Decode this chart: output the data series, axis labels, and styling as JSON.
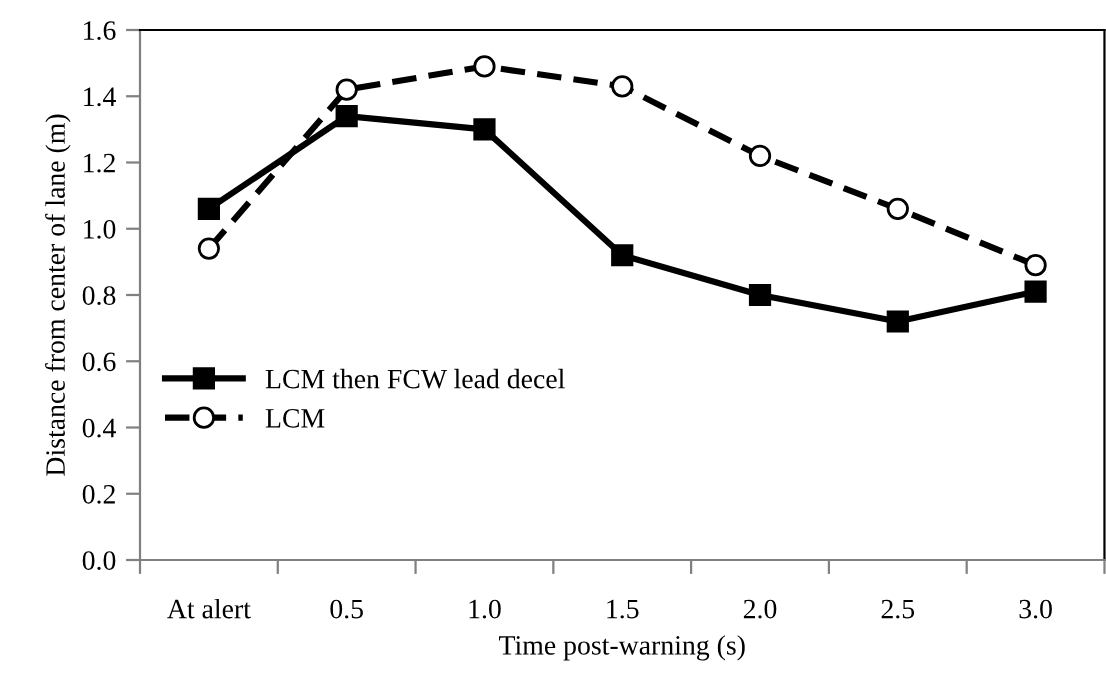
{
  "chart_data": {
    "type": "line",
    "xlabel": "Time post-warning (s)",
    "ylabel": "Distance from center of lane (m)",
    "categories": [
      "At alert",
      "0.5",
      "1.0",
      "1.5",
      "2.0",
      "2.5",
      "3.0"
    ],
    "series": [
      {
        "name": "LCM then FCW lead decel",
        "color": "#000000",
        "marker": "square",
        "line_style": "solid",
        "values": [
          1.06,
          1.34,
          1.3,
          0.92,
          0.8,
          0.72,
          0.81
        ]
      },
      {
        "name": "LCM",
        "color": "#000000",
        "marker": "circle",
        "line_style": "dashed",
        "values": [
          0.94,
          1.42,
          1.49,
          1.43,
          1.22,
          1.06,
          0.89
        ]
      }
    ],
    "ylim": [
      0,
      1.6
    ],
    "yticks": [
      {
        "value": 0,
        "label": "0.0"
      },
      0.2,
      0.4,
      0.6,
      0.8,
      {
        "value": 1,
        "label": "1.0"
      },
      1.2,
      1.4,
      1.6
    ],
    "grid": false,
    "legend": "center left"
  }
}
